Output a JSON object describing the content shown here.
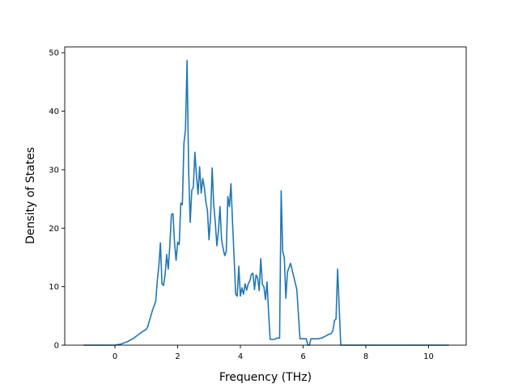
{
  "chart_data": {
    "type": "line",
    "title": "",
    "xlabel": "Frequency (THz)",
    "ylabel": "Density of States",
    "xlim": [
      -1.6,
      11.2
    ],
    "ylim": [
      0,
      51
    ],
    "xticks": [
      0,
      2,
      4,
      6,
      8,
      10
    ],
    "yticks": [
      0,
      10,
      20,
      30,
      40,
      50
    ],
    "grid": false,
    "legend": "none",
    "line_color": "#1f77b4",
    "series": [
      {
        "x": [
          -1.0,
          -0.5,
          0.0,
          0.1,
          0.2,
          0.3,
          0.4,
          0.5,
          0.6,
          0.7,
          0.8,
          0.9,
          1.0,
          1.05,
          1.1,
          1.2,
          1.3,
          1.35,
          1.4,
          1.45,
          1.5,
          1.55,
          1.6,
          1.65,
          1.7,
          1.75,
          1.8,
          1.85,
          1.9,
          1.95,
          2.0,
          2.05,
          2.1,
          2.15,
          2.2,
          2.25,
          2.3,
          2.35,
          2.4,
          2.45,
          2.5,
          2.55,
          2.6,
          2.65,
          2.7,
          2.75,
          2.8,
          2.85,
          2.9,
          2.95,
          3.0,
          3.05,
          3.1,
          3.15,
          3.2,
          3.25,
          3.3,
          3.35,
          3.4,
          3.45,
          3.5,
          3.55,
          3.6,
          3.65,
          3.7,
          3.75,
          3.8,
          3.85,
          3.9,
          3.95,
          4.0,
          4.05,
          4.1,
          4.15,
          4.2,
          4.25,
          4.3,
          4.35,
          4.4,
          4.45,
          4.5,
          4.55,
          4.6,
          4.65,
          4.7,
          4.75,
          4.8,
          4.85,
          4.9,
          4.95,
          5.0,
          5.05,
          5.1,
          5.15,
          5.2,
          5.25,
          5.3,
          5.35,
          5.4,
          5.45,
          5.5,
          5.6,
          5.8,
          5.9,
          6.0,
          6.1,
          6.15,
          6.2,
          6.25,
          6.3,
          6.35,
          6.4,
          6.45,
          6.5,
          6.55,
          6.6,
          6.65,
          6.7,
          6.8,
          6.9,
          6.95,
          7.0,
          7.05,
          7.1,
          7.2,
          7.5,
          7.8,
          8.0,
          8.3,
          8.5,
          8.8,
          9.0,
          9.2,
          9.4,
          9.5,
          9.55,
          9.6,
          9.65,
          9.7,
          9.75,
          9.8,
          10.0,
          10.5,
          10.65
        ],
        "y": [
          0,
          0,
          0,
          0.1,
          0.2,
          0.4,
          0.6,
          0.9,
          1.2,
          1.6,
          2.0,
          2.4,
          2.7,
          3.2,
          4.2,
          6.0,
          7.5,
          11.0,
          13.5,
          17.5,
          10.5,
          10.2,
          12.0,
          15.5,
          13.0,
          17.0,
          22.3,
          22.5,
          17.5,
          14.5,
          17.6,
          17.2,
          24.3,
          24.0,
          34.5,
          37.0,
          48.7,
          30.0,
          21.0,
          26.5,
          27.0,
          33.0,
          29.0,
          25.8,
          30.5,
          26.0,
          28.5,
          27.0,
          24.5,
          23.0,
          18.0,
          22.0,
          30.3,
          24.0,
          21.0,
          17.0,
          19.5,
          23.7,
          18.0,
          16.5,
          15.3,
          16.0,
          25.4,
          23.7,
          27.6,
          21.0,
          15.0,
          8.7,
          8.4,
          13.5,
          8.4,
          9.8,
          8.7,
          10.5,
          9.4,
          10.5,
          11.0,
          12.1,
          12.3,
          9.5,
          12.0,
          11.5,
          9.3,
          14.8,
          10.4,
          10.0,
          7.8,
          10.8,
          5.5,
          1.0,
          1.0,
          1.0,
          1.0,
          1.2,
          1.2,
          1.2,
          26.4,
          16.0,
          15.0,
          8.0,
          12.5,
          14.0,
          9.5,
          1.1,
          1.1,
          1.1,
          0,
          0,
          1.1,
          1.1,
          1.1,
          1.1,
          1.1,
          1.1,
          1.2,
          1.2,
          1.4,
          1.5,
          1.8,
          2.0,
          2.5,
          4.2,
          4.5,
          13.0,
          0,
          0,
          0,
          0,
          0,
          0,
          0,
          0,
          0,
          0,
          0,
          0,
          0,
          0,
          0,
          0,
          0,
          0,
          0,
          0
        ]
      }
    ]
  }
}
